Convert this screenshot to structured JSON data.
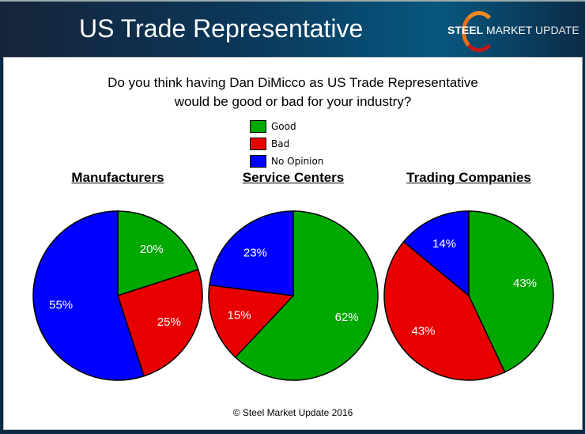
{
  "header": {
    "title": "US Trade Representative",
    "logo_bold": "STEEL",
    "logo_mid": " MARKET",
    "logo_light": " UPDATE"
  },
  "question": [
    "Do you think having Dan DiMicco as US Trade Representative",
    "would be good or bad for your industry?"
  ],
  "footer": "© Steel Market Update 2016",
  "chart_data": [
    {
      "type": "pie",
      "title": "Manufacturers",
      "categories": [
        "Good",
        "Bad",
        "No Opinion"
      ],
      "values": [
        20,
        25,
        55
      ]
    },
    {
      "type": "pie",
      "title": "Service Centers",
      "categories": [
        "Good",
        "Bad",
        "No Opinion"
      ],
      "values": [
        62,
        15,
        23
      ]
    },
    {
      "type": "pie",
      "title": "Trading Companies",
      "categories": [
        "Good",
        "Bad",
        "No Opinion"
      ],
      "values": [
        43,
        43,
        14
      ]
    }
  ],
  "legend": [
    {
      "label": "Good",
      "color": "#00a800"
    },
    {
      "label": "Bad",
      "color": "#e80000"
    },
    {
      "label": "No Opinion",
      "color": "#0000ff"
    }
  ]
}
